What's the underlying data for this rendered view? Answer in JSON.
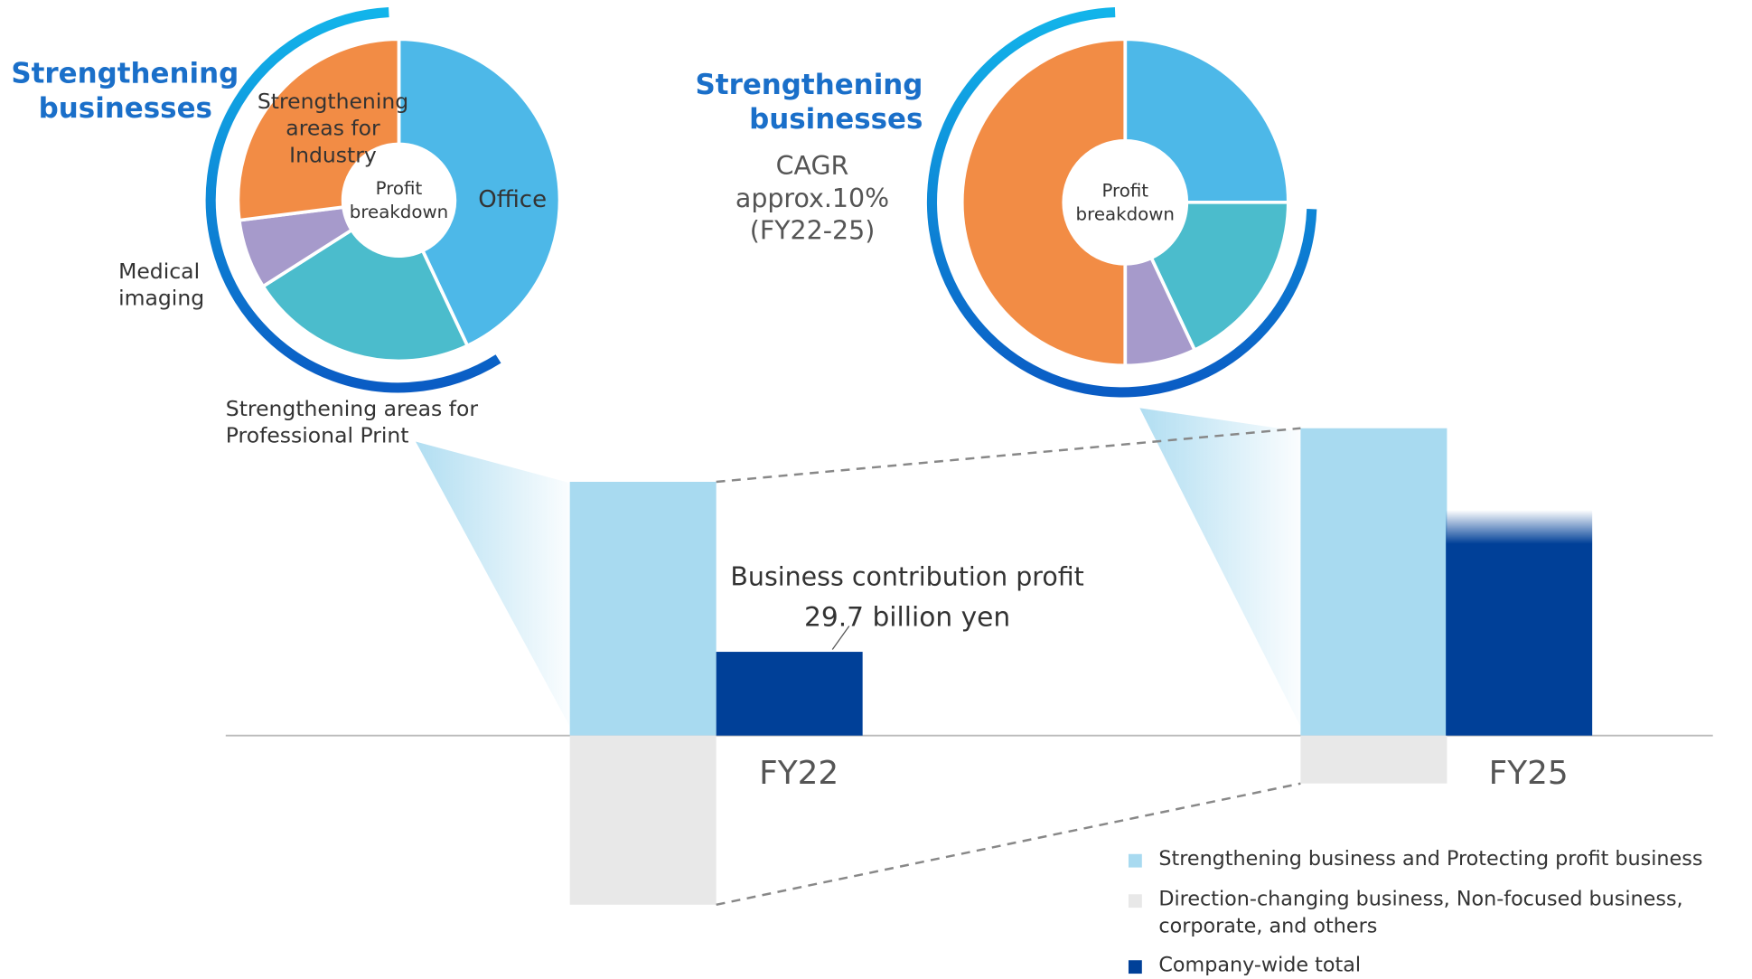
{
  "chart_data": [
    {
      "type": "donut",
      "title": "Strengthening businesses",
      "center_label": "Profit breakdown",
      "categories": [
        "Office",
        "Strengthening areas for Professional Print",
        "Medical imaging",
        "Strengthening areas for Industry"
      ],
      "values": [
        43,
        23,
        7,
        27
      ],
      "colors": [
        "#4db8e8",
        "#4bbccc",
        "#a69acb",
        "#f28c45"
      ]
    },
    {
      "type": "donut",
      "title": "Strengthening businesses",
      "center_label": "Profit breakdown",
      "annotations": [
        "CAGR",
        "approx.10%",
        "(FY22-25)"
      ],
      "values": [
        25,
        18,
        7,
        50
      ],
      "colors": [
        "#4db8e8",
        "#4bbccc",
        "#a69acb",
        "#f28c45"
      ]
    },
    {
      "type": "bar",
      "categories": [
        "FY22",
        "FY25"
      ],
      "annotation": "Business contribution profit",
      "series": [
        {
          "name": "Strengthening business and Protecting profit business",
          "color": "#a8daf0",
          "values": [
            90,
            109
          ]
        },
        {
          "name": "Direction-changing business, Non-focused business, corporate, and others",
          "color": "#e8e8e8",
          "values": [
            -60,
            -17
          ]
        },
        {
          "name": "Company-wide total",
          "color": "#004098",
          "values": [
            29.7,
            80
          ],
          "value_labels": [
            "29.7 billion yen",
            null
          ]
        }
      ]
    }
  ]
}
